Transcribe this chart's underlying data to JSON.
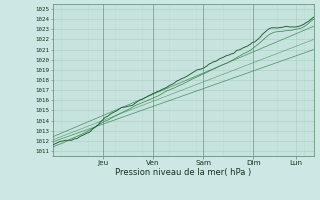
{
  "title": "Pression niveau de la mer( hPa )",
  "ylabel_ticks": [
    1011,
    1012,
    1013,
    1014,
    1015,
    1016,
    1017,
    1018,
    1019,
    1020,
    1021,
    1022,
    1023,
    1024,
    1025
  ],
  "ylim": [
    1010.5,
    1025.5
  ],
  "xlim": [
    0.0,
    5.2
  ],
  "x_day_labels": [
    "Jeu",
    "Ven",
    "Sam",
    "Dim",
    "Lun"
  ],
  "x_day_positions": [
    1.0,
    2.0,
    3.0,
    4.0,
    4.85
  ],
  "bg_color": "#cde8e4",
  "grid_color": "#aaccc7",
  "line_color_dark": "#1a5c2a",
  "line_color_thin": "#2d7a3a",
  "trend_color": "#3a8a50"
}
